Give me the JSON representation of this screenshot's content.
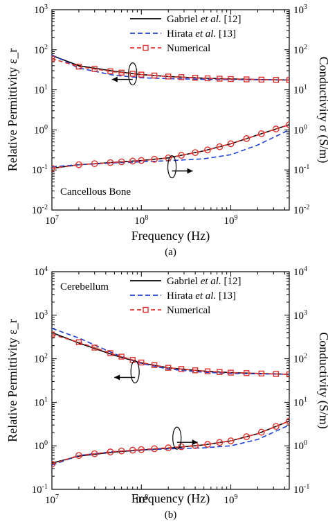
{
  "chart_data": [
    {
      "type": "line",
      "panel_label": "(a)",
      "annotation": "Cancellous Bone",
      "xlabel": "Frequency (Hz)",
      "ylabel_left": "Relative Permittivity ε_r",
      "ylabel_right": "Conductivity σ (S/m)",
      "x_scale": "log",
      "y_scale": "log",
      "xlim": [
        10000000,
        4500000000
      ],
      "ylim": [
        0.01,
        1000
      ],
      "x_ticks": [
        {
          "v": 10000000,
          "base": "10",
          "exp": "7"
        },
        {
          "v": 100000000,
          "base": "10",
          "exp": "8"
        },
        {
          "v": 1000000000,
          "base": "10",
          "exp": "9"
        }
      ],
      "y_ticks": [
        {
          "v": 0.01,
          "base": "10",
          "exp": "-2"
        },
        {
          "v": 0.1,
          "base": "10",
          "exp": "-1"
        },
        {
          "v": 1,
          "base": "10",
          "exp": "0"
        },
        {
          "v": 10,
          "base": "10",
          "exp": "1"
        },
        {
          "v": 100,
          "base": "10",
          "exp": "2"
        },
        {
          "v": 1000,
          "base": "10",
          "exp": "3"
        }
      ],
      "legend": {
        "placement": "top-right",
        "entries": [
          {
            "pre": "Gabriel ",
            "italic": "et al.",
            "post": " [12]",
            "color": "#000000",
            "dash": "none",
            "marker": "none"
          },
          {
            "pre": "Hirata ",
            "italic": "et al.",
            "post": " [13]",
            "color": "#1f3fd6",
            "dash": "7 4",
            "marker": "none"
          },
          {
            "pre": "Numerical",
            "italic": "",
            "post": "",
            "color": "#e0302b",
            "dash": "6 4",
            "marker": "square"
          }
        ]
      },
      "arrows": [
        {
          "x": 80000000,
          "y": 25,
          "dir": "left",
          "target": "permittivity"
        },
        {
          "x": 220000000,
          "y": 0.12,
          "dir": "right",
          "target": "conductivity"
        }
      ],
      "series": [
        {
          "name": "Gabriel et al. [12]",
          "group": "permittivity",
          "x": [
            10000000,
            20000000,
            50000000,
            100000000,
            200000000,
            500000000,
            1000000000,
            2000000000,
            4500000000
          ],
          "y": [
            72,
            40,
            29,
            24,
            21.5,
            19.5,
            18.7,
            18.1,
            17.6
          ]
        },
        {
          "name": "Hirata et al. [13]",
          "group": "permittivity",
          "x": [
            10000000,
            20000000,
            50000000,
            100000000,
            200000000,
            500000000,
            1000000000,
            2000000000,
            4500000000
          ],
          "y": [
            75,
            35,
            23,
            20,
            19,
            18.3,
            18,
            17.8,
            17.6
          ]
        },
        {
          "name": "Numerical",
          "group": "permittivity",
          "x": [
            10000000,
            20000000,
            50000000,
            100000000,
            200000000,
            500000000,
            1000000000,
            2000000000,
            4500000000
          ],
          "y": [
            60,
            38,
            28,
            24,
            21.5,
            19.5,
            18.6,
            18,
            17.5
          ]
        },
        {
          "name": "Gabriel et al. [12]",
          "group": "conductivity",
          "x": [
            10000000,
            20000000,
            50000000,
            100000000,
            200000000,
            500000000,
            1000000000,
            2000000000,
            4500000000
          ],
          "y": [
            0.11,
            0.135,
            0.155,
            0.172,
            0.2,
            0.3,
            0.45,
            0.75,
            1.35
          ]
        },
        {
          "name": "Hirata et al. [13]",
          "group": "conductivity",
          "x": [
            10000000,
            20000000,
            50000000,
            100000000,
            200000000,
            500000000,
            1000000000,
            2000000000,
            4500000000
          ],
          "y": [
            0.12,
            0.135,
            0.15,
            0.16,
            0.17,
            0.19,
            0.24,
            0.42,
            1.0
          ]
        },
        {
          "name": "Numerical",
          "group": "conductivity",
          "x": [
            10000000,
            20000000,
            50000000,
            100000000,
            200000000,
            500000000,
            1000000000,
            2000000000,
            4500000000
          ],
          "y": [
            0.11,
            0.135,
            0.155,
            0.172,
            0.2,
            0.3,
            0.45,
            0.75,
            1.35
          ]
        }
      ],
      "markers_x": [
        10000000,
        20000000,
        30000000,
        45000000,
        60000000,
        80000000,
        100000000,
        140000000,
        200000000,
        280000000,
        400000000,
        550000000,
        750000000,
        1000000000,
        1500000000,
        2200000000,
        3200000000,
        4500000000
      ],
      "marker_shape": {
        "permittivity": "square",
        "conductivity": "circle"
      }
    },
    {
      "type": "line",
      "panel_label": "(b)",
      "annotation": "Cerebellum",
      "xlabel": "Frequency (Hz)",
      "ylabel_left": "Relative Permittivity ε_r",
      "ylabel_right": "Conductivity (S/m)",
      "x_scale": "log",
      "y_scale": "log",
      "xlim": [
        10000000,
        4500000000
      ],
      "ylim": [
        0.1,
        10000
      ],
      "x_ticks": [
        {
          "v": 10000000,
          "base": "10",
          "exp": "7"
        },
        {
          "v": 100000000,
          "base": "10",
          "exp": "8"
        },
        {
          "v": 1000000000,
          "base": "10",
          "exp": "9"
        }
      ],
      "y_ticks": [
        {
          "v": 0.1,
          "base": "10",
          "exp": "-1"
        },
        {
          "v": 1,
          "base": "10",
          "exp": "0"
        },
        {
          "v": 10,
          "base": "10",
          "exp": "1"
        },
        {
          "v": 100,
          "base": "10",
          "exp": "2"
        },
        {
          "v": 1000,
          "base": "10",
          "exp": "3"
        },
        {
          "v": 10000,
          "base": "10",
          "exp": "4"
        }
      ],
      "legend": {
        "placement": "top-right",
        "entries": [
          {
            "pre": "Gabriel ",
            "italic": "et al.",
            "post": " [12]",
            "color": "#000000",
            "dash": "none",
            "marker": "none"
          },
          {
            "pre": "Hirata ",
            "italic": "et al.",
            "post": " [13]",
            "color": "#1f3fd6",
            "dash": "7 4",
            "marker": "none"
          },
          {
            "pre": "Numerical",
            "italic": "",
            "post": "",
            "color": "#e0302b",
            "dash": "6 4",
            "marker": "square"
          }
        ]
      },
      "arrows": [
        {
          "x": 85000000,
          "y": 50,
          "dir": "left",
          "target": "permittivity"
        },
        {
          "x": 250000000,
          "y": 1.5,
          "dir": "right",
          "target": "conductivity"
        }
      ],
      "series": [
        {
          "name": "Gabriel et al. [12]",
          "group": "permittivity",
          "x": [
            10000000,
            20000000,
            50000000,
            100000000,
            200000000,
            500000000,
            1000000000,
            2000000000,
            4500000000
          ],
          "y": [
            400,
            230,
            120,
            80,
            62,
            52,
            48,
            46,
            44
          ]
        },
        {
          "name": "Hirata et al. [13]",
          "group": "permittivity",
          "x": [
            10000000,
            20000000,
            50000000,
            100000000,
            200000000,
            500000000,
            1000000000,
            2000000000,
            4500000000
          ],
          "y": [
            500,
            300,
            130,
            78,
            58,
            49,
            46,
            45,
            44
          ]
        },
        {
          "name": "Numerical",
          "group": "permittivity",
          "x": [
            10000000,
            20000000,
            50000000,
            100000000,
            200000000,
            500000000,
            1000000000,
            2000000000,
            4500000000
          ],
          "y": [
            360,
            240,
            125,
            82,
            62,
            52,
            48,
            46,
            44
          ]
        },
        {
          "name": "Gabriel et al. [12]",
          "group": "conductivity",
          "x": [
            10000000,
            20000000,
            50000000,
            100000000,
            200000000,
            500000000,
            1000000000,
            2000000000,
            4500000000
          ],
          "y": [
            0.4,
            0.58,
            0.72,
            0.8,
            0.88,
            1.05,
            1.3,
            1.9,
            3.7
          ]
        },
        {
          "name": "Hirata et al. [13]",
          "group": "conductivity",
          "x": [
            10000000,
            20000000,
            50000000,
            100000000,
            200000000,
            500000000,
            1000000000,
            2000000000,
            4500000000
          ],
          "y": [
            0.36,
            0.6,
            0.74,
            0.8,
            0.85,
            0.9,
            1.0,
            1.4,
            3.0
          ]
        },
        {
          "name": "Numerical",
          "group": "conductivity",
          "x": [
            10000000,
            20000000,
            50000000,
            100000000,
            200000000,
            500000000,
            1000000000,
            2000000000,
            4500000000
          ],
          "y": [
            0.38,
            0.6,
            0.74,
            0.82,
            0.9,
            1.05,
            1.3,
            1.9,
            3.7
          ]
        }
      ],
      "markers_x": [
        10000000,
        20000000,
        30000000,
        45000000,
        60000000,
        80000000,
        100000000,
        140000000,
        200000000,
        280000000,
        400000000,
        550000000,
        750000000,
        1000000000,
        1500000000,
        2200000000,
        3200000000,
        4500000000
      ],
      "marker_shape": {
        "permittivity": "square",
        "conductivity": "circle"
      }
    }
  ]
}
